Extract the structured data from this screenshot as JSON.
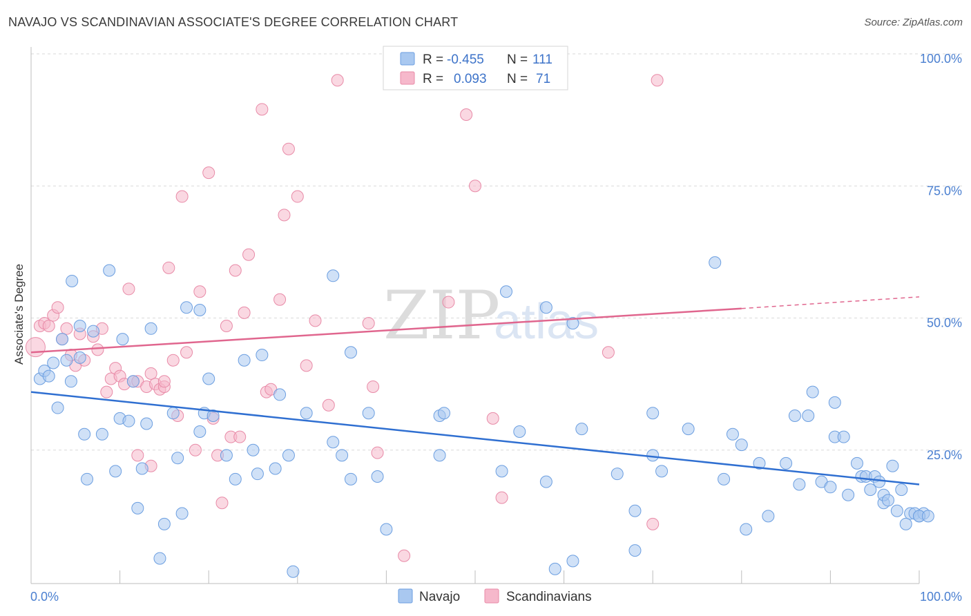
{
  "header": {
    "title": "NAVAJO VS SCANDINAVIAN ASSOCIATE'S DEGREE CORRELATION CHART",
    "source": "Source: ZipAtlas.com"
  },
  "watermark": {
    "part1": "ZIP",
    "part2": "atlas"
  },
  "legend_box": {
    "rows": [
      {
        "r_label": "R =",
        "r_value": "-0.455",
        "n_label": "N =",
        "n_value": "111",
        "color": "#a9c8f0"
      },
      {
        "r_label": "R =",
        "r_value": "0.093",
        "n_label": "N =",
        "n_value": "71",
        "color": "#f6b8cb"
      }
    ]
  },
  "colors": {
    "navajo_fill": "#a9c8f0",
    "navajo_stroke": "#6b9ee0",
    "navajo_line": "#2f6fd1",
    "scand_fill": "#f6b8cb",
    "scand_stroke": "#e88aa7",
    "scand_line": "#e0668e",
    "grid": "#d9d9d9",
    "tick_text": "#4a7fd0"
  },
  "chart_data": {
    "type": "scatter",
    "title": "NAVAJO VS SCANDINAVIAN ASSOCIATE'S DEGREE CORRELATION CHART",
    "xlabel": "",
    "ylabel": "Associate's Degree",
    "xlim": [
      0,
      100
    ],
    "ylim": [
      0,
      100
    ],
    "x_tick_labels": [
      "0.0%",
      "100.0%"
    ],
    "y_ticks": [
      25,
      50,
      75,
      100
    ],
    "y_tick_labels": [
      "25.0%",
      "50.0%",
      "75.0%",
      "100.0%"
    ],
    "grid": true,
    "legend_position": "bottom",
    "series": [
      {
        "name": "Navajo",
        "trend": {
          "x1": 0,
          "y1": 36,
          "x2": 100,
          "y2": 18.5
        },
        "points": [
          [
            1,
            38.5
          ],
          [
            1.5,
            40
          ],
          [
            2,
            39
          ],
          [
            2.5,
            41.5
          ],
          [
            3,
            33
          ],
          [
            3.5,
            46
          ],
          [
            4,
            42
          ],
          [
            4.5,
            38
          ],
          [
            4.6,
            57
          ],
          [
            5.5,
            48.5
          ],
          [
            5.5,
            42.5
          ],
          [
            6,
            28
          ],
          [
            6.3,
            19.5
          ],
          [
            7,
            47.5
          ],
          [
            8,
            28
          ],
          [
            8.8,
            59
          ],
          [
            9.5,
            21
          ],
          [
            10,
            31
          ],
          [
            10.3,
            46
          ],
          [
            11,
            30.5
          ],
          [
            11.5,
            38
          ],
          [
            12,
            14
          ],
          [
            12.5,
            21.5
          ],
          [
            13,
            30
          ],
          [
            13.5,
            48
          ],
          [
            14.5,
            4.5
          ],
          [
            15,
            11
          ],
          [
            16,
            32
          ],
          [
            16.5,
            23.5
          ],
          [
            17,
            13
          ],
          [
            17.5,
            52
          ],
          [
            19,
            51.5
          ],
          [
            19,
            28.5
          ],
          [
            19.5,
            32
          ],
          [
            20,
            38.5
          ],
          [
            20.5,
            31.5
          ],
          [
            22,
            24
          ],
          [
            23,
            19.5
          ],
          [
            24,
            42
          ],
          [
            25,
            25
          ],
          [
            25.5,
            20.5
          ],
          [
            26,
            43
          ],
          [
            27.5,
            21.5
          ],
          [
            28,
            35.5
          ],
          [
            29,
            24
          ],
          [
            29.5,
            2
          ],
          [
            31,
            32
          ],
          [
            34,
            58
          ],
          [
            34,
            26.5
          ],
          [
            35,
            24
          ],
          [
            36,
            19.5
          ],
          [
            36,
            43.5
          ],
          [
            38,
            32
          ],
          [
            39,
            20
          ],
          [
            40,
            10
          ],
          [
            46,
            31.5
          ],
          [
            46.5,
            32
          ],
          [
            46,
            24
          ],
          [
            53,
            21
          ],
          [
            53.5,
            55
          ],
          [
            55,
            28.5
          ],
          [
            58,
            52
          ],
          [
            58,
            19
          ],
          [
            59,
            2.5
          ],
          [
            61,
            4
          ],
          [
            61,
            49
          ],
          [
            62,
            29
          ],
          [
            66,
            20.5
          ],
          [
            68,
            6
          ],
          [
            68,
            13.5
          ],
          [
            70,
            24
          ],
          [
            70,
            32
          ],
          [
            71,
            21
          ],
          [
            74,
            29
          ],
          [
            77,
            60.5
          ],
          [
            78,
            19.5
          ],
          [
            79,
            28
          ],
          [
            80,
            26
          ],
          [
            80.5,
            10
          ],
          [
            82,
            22.5
          ],
          [
            83,
            12.5
          ],
          [
            85,
            22.5
          ],
          [
            86,
            31.5
          ],
          [
            86.5,
            18.5
          ],
          [
            87.5,
            31.5
          ],
          [
            88,
            36
          ],
          [
            89,
            19
          ],
          [
            90,
            18
          ],
          [
            90.5,
            27.5
          ],
          [
            90.5,
            34
          ],
          [
            91.5,
            27.5
          ],
          [
            92,
            16.5
          ],
          [
            93,
            22.5
          ],
          [
            93.5,
            20
          ],
          [
            94,
            20
          ],
          [
            94.5,
            17.5
          ],
          [
            95,
            20
          ],
          [
            95.5,
            19
          ],
          [
            96,
            15
          ],
          [
            96,
            16.5
          ],
          [
            96.5,
            15.5
          ],
          [
            97,
            22
          ],
          [
            97.5,
            13.5
          ],
          [
            98,
            17.5
          ],
          [
            98.5,
            11
          ],
          [
            99,
            13
          ],
          [
            99.5,
            13
          ],
          [
            100,
            12.5
          ],
          [
            100.5,
            13
          ],
          [
            100,
            12.5
          ],
          [
            101,
            12.5
          ]
        ]
      },
      {
        "name": "Scandinavians",
        "trend": {
          "x1": 0,
          "y1": 43.5,
          "x2": 80,
          "y2": 51.8,
          "dash_to_x": 100,
          "dash_to_y": 54
        },
        "points": [
          [
            0.5,
            44.5
          ],
          [
            1,
            48.5
          ],
          [
            1.5,
            49
          ],
          [
            2,
            48.5
          ],
          [
            2.5,
            50.5
          ],
          [
            3,
            52
          ],
          [
            3.5,
            46
          ],
          [
            4,
            48
          ],
          [
            4.5,
            43
          ],
          [
            5,
            41
          ],
          [
            5.5,
            47
          ],
          [
            6,
            42
          ],
          [
            7,
            46.5
          ],
          [
            7.5,
            44
          ],
          [
            8,
            48
          ],
          [
            8.5,
            36
          ],
          [
            9,
            38.5
          ],
          [
            9.5,
            40.5
          ],
          [
            10,
            39
          ],
          [
            10.5,
            37.5
          ],
          [
            11,
            55.5
          ],
          [
            11.5,
            38
          ],
          [
            12,
            38
          ],
          [
            13,
            37
          ],
          [
            13.5,
            39.5
          ],
          [
            14,
            37.5
          ],
          [
            14.5,
            36.5
          ],
          [
            15,
            37
          ],
          [
            15.5,
            59.5
          ],
          [
            16,
            42
          ],
          [
            16.5,
            31.5
          ],
          [
            17,
            73
          ],
          [
            17.5,
            43.5
          ],
          [
            18.5,
            25
          ],
          [
            19,
            55
          ],
          [
            20,
            77.5
          ],
          [
            20.5,
            31
          ],
          [
            21,
            24
          ],
          [
            21.5,
            15
          ],
          [
            22,
            48.5
          ],
          [
            22.5,
            27.5
          ],
          [
            23,
            59
          ],
          [
            23.5,
            27.5
          ],
          [
            24,
            51
          ],
          [
            24.5,
            62
          ],
          [
            26,
            89.5
          ],
          [
            26.5,
            36
          ],
          [
            27,
            36.5
          ],
          [
            28,
            53.5
          ],
          [
            28.5,
            69.5
          ],
          [
            29,
            82
          ],
          [
            30,
            73
          ],
          [
            31,
            41
          ],
          [
            32,
            49.5
          ],
          [
            33.5,
            33.5
          ],
          [
            34.5,
            95
          ],
          [
            38,
            49
          ],
          [
            38.5,
            37
          ],
          [
            39,
            24.5
          ],
          [
            42,
            5
          ],
          [
            47,
            53
          ],
          [
            49,
            88.5
          ],
          [
            50,
            75
          ],
          [
            52,
            31
          ],
          [
            53,
            16
          ],
          [
            65,
            43.5
          ],
          [
            70,
            11
          ],
          [
            70.5,
            95
          ],
          [
            12,
            24
          ],
          [
            13.5,
            22
          ],
          [
            15,
            38
          ]
        ]
      }
    ]
  }
}
